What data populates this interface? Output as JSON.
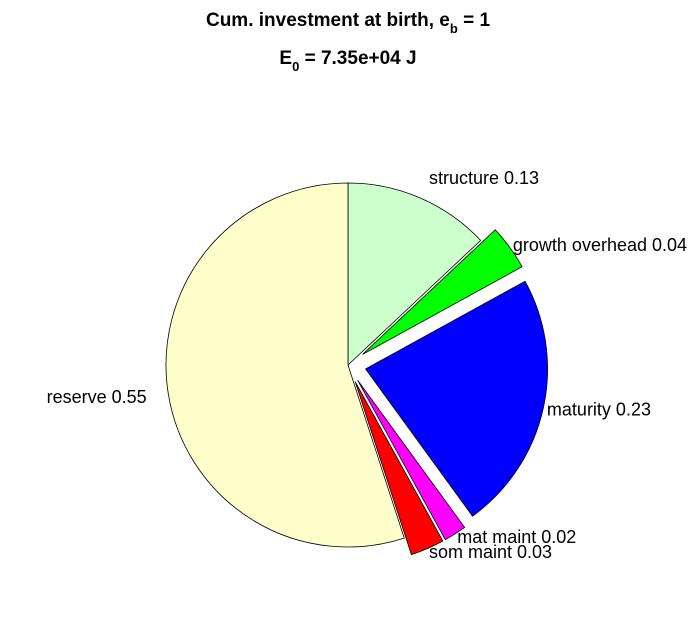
{
  "chart_data": {
    "type": "pie",
    "title": [
      "Cum. investment at birth, e",
      "b",
      " = 1"
    ],
    "subtitle": [
      "E",
      "0",
      " = 7.35e+04 J"
    ],
    "categories": [
      "structure",
      "growth overhead",
      "maturity",
      "mat maint",
      "som maint",
      "reserve"
    ],
    "values": [
      0.13,
      0.04,
      0.23,
      0.02,
      0.03,
      0.55
    ],
    "value_labels": [
      "structure 0.13",
      "growth overhead 0.04",
      "maturity 0.23",
      "mat maint 0.02",
      "som maint 0.03",
      "reserve 0.55"
    ],
    "colors": [
      "#ccffcc",
      "#00ff00",
      "#0000ff",
      "#ff00ff",
      "#ff0000",
      "#ffffcc"
    ],
    "explode": [
      false,
      true,
      true,
      true,
      true,
      false
    ]
  }
}
